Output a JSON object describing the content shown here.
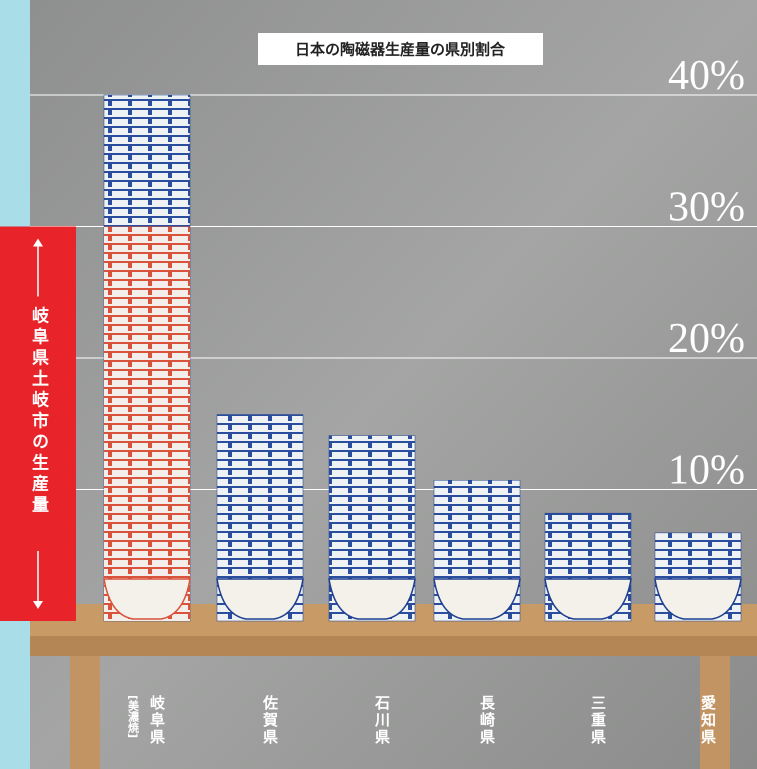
{
  "chart_data": {
    "type": "bar",
    "title": "日本の陶磁器生産量の県別割合",
    "categories": [
      "岐阜県",
      "佐賀県",
      "石川県",
      "長崎県",
      "三重県",
      "愛知県"
    ],
    "category_notes": [
      "[美濃焼]",
      null,
      null,
      null,
      null,
      null
    ],
    "values": [
      40,
      15.7,
      14.1,
      10.7,
      8.2,
      6.7
    ],
    "color": "#1e3f8f",
    "highlight": {
      "label": "岐阜県土岐市の生産量",
      "value": 30,
      "color": "#e8232a"
    },
    "ylim": [
      0,
      40
    ],
    "yticks": [
      {
        "value": 10,
        "label": "10%"
      },
      {
        "value": 20,
        "label": "20%"
      },
      {
        "value": 30,
        "label": "30%"
      },
      {
        "value": 40,
        "label": "40%"
      }
    ],
    "grid": true
  }
}
